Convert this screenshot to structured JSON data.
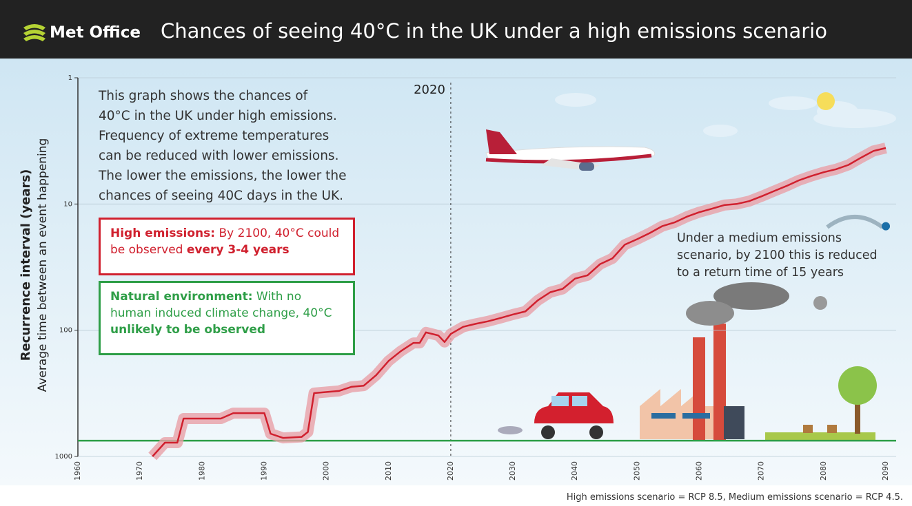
{
  "header": {
    "logo": "Met Office",
    "title": "Chances of seeing 40°C in the UK under a high emissions scenario"
  },
  "chart_data": {
    "type": "line",
    "y_label": "Recurrence interval (years)",
    "y_sublabel": "Average time between an event happening",
    "x": [
      1972,
      1974,
      1976,
      1977,
      1983,
      1985,
      1990,
      1991,
      1993,
      1996,
      1997,
      1998,
      2002,
      2004,
      2006,
      2008,
      2010,
      2012,
      2014,
      2015,
      2016,
      2018,
      2019,
      2020,
      2022,
      2024,
      2026,
      2028,
      2030,
      2032,
      2034,
      2036,
      2038,
      2040,
      2042,
      2044,
      2046,
      2048,
      2050,
      2052,
      2054,
      2056,
      2058,
      2060,
      2062,
      2064,
      2066,
      2068,
      2070,
      2072,
      2074,
      2076,
      2078,
      2080,
      2082,
      2084,
      2086,
      2088,
      2090
    ],
    "values": [
      1000,
      778,
      778,
      501,
      501,
      454,
      454,
      661,
      713,
      700,
      640,
      315,
      303,
      281,
      275,
      227,
      175,
      146,
      126,
      126,
      104,
      110,
      124,
      107,
      94,
      89,
      85,
      80,
      75,
      71,
      58,
      50,
      47,
      39,
      36.7,
      30,
      27,
      21,
      19,
      17,
      15,
      14,
      12.6,
      11.6,
      10.9,
      10.2,
      10,
      9.5,
      8.7,
      7.9,
      7.2,
      6.5,
      6,
      5.6,
      5.3,
      4.9,
      4.3,
      3.8,
      3.6
    ],
    "color": "#d0202e",
    "band_color": "#e8a0a8",
    "xlim": [
      1960,
      2090
    ],
    "xticks": [
      1960,
      1970,
      1980,
      1990,
      2000,
      2010,
      2020,
      2030,
      2040,
      2050,
      2060,
      2070,
      2080,
      2090
    ],
    "ylim": [
      1,
      1000
    ],
    "yticks": [
      1,
      10,
      100,
      1000
    ],
    "yscale": "log",
    "y_inverted": true,
    "grid": true,
    "reference_year": 2020,
    "natural_level": 750,
    "natural_color": "#2e9e47",
    "medium_point": {
      "x": 2090,
      "value": 15,
      "color": "#1a6fa8"
    },
    "intro": [
      "This graph shows the chances of",
      "40°C in the UK under high emissions.",
      "Frequency of extreme temperatures",
      "can be reduced with lower emissions.",
      "The lower the emissions, the lower the",
      "chances of seeing 40C days in the UK."
    ],
    "high_box": {
      "lead": "High emissions:",
      "text": "By 2100, 40°C could be observed",
      "emphasis": "every 3-4 years"
    },
    "natural_box": {
      "lead": "Natural environment:",
      "text": "With no human induced climate change, 40°C",
      "emphasis": "unlikely to be observed"
    },
    "medium_note": [
      "Under a medium emissions",
      "scenario, by 2100 this is reduced",
      "to a return time of 15 years"
    ],
    "footnote": "High emissions scenario = RCP 8.5, Medium emissions scenario = RCP 4.5."
  }
}
